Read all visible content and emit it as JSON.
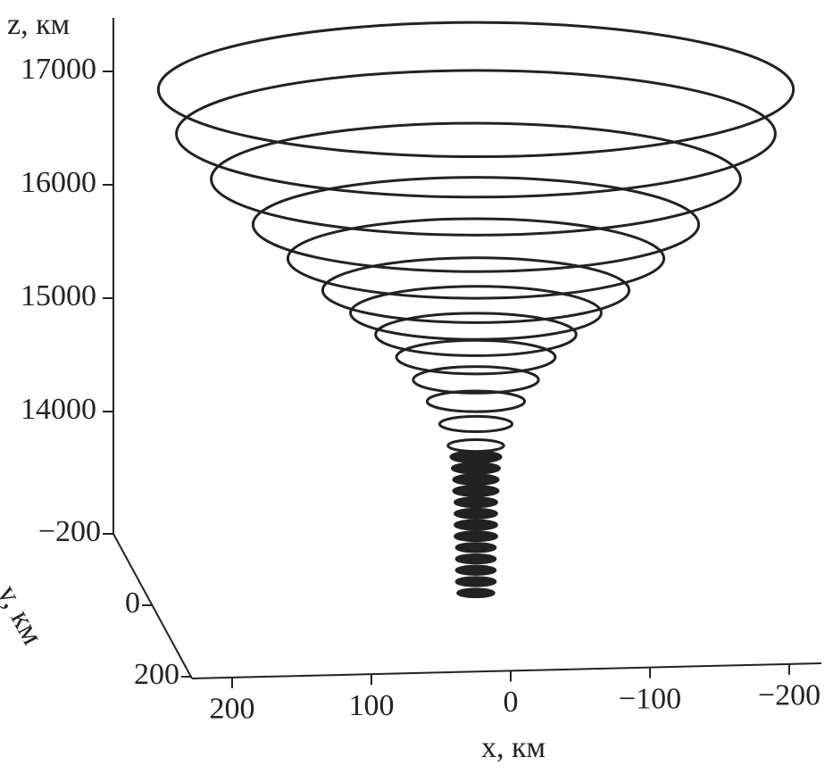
{
  "chart_data": {
    "type": "funnel3d",
    "xlabel": "x, км",
    "ylabel": "y, км",
    "zlabel": "z, км",
    "xticks": [
      200,
      100,
      0,
      {
        "value": -100,
        "label": "−100"
      },
      {
        "value": -200,
        "label": "−200"
      }
    ],
    "yticks": [
      {
        "value": -200,
        "label": "−200"
      },
      0,
      200
    ],
    "zticks": [
      14000,
      15000,
      16000,
      17000
    ],
    "center": [
      25,
      0
    ],
    "color": "#222222",
    "rings": {
      "z": [
        16840,
        16450,
        16050,
        15650,
        15350,
        15070,
        14870,
        14680,
        14480,
        14280,
        14090,
        13890,
        13700,
        13600,
        13500,
        13400,
        13300,
        13200,
        13100,
        13000,
        12900,
        12800,
        12700,
        12600,
        12500,
        12400
      ],
      "r": [
        228,
        215,
        190,
        160,
        135,
        110,
        90,
        72,
        57,
        45,
        35,
        26,
        20,
        18,
        17,
        16,
        16,
        15,
        15,
        15,
        15,
        14,
        14,
        14,
        14,
        13
      ]
    }
  }
}
